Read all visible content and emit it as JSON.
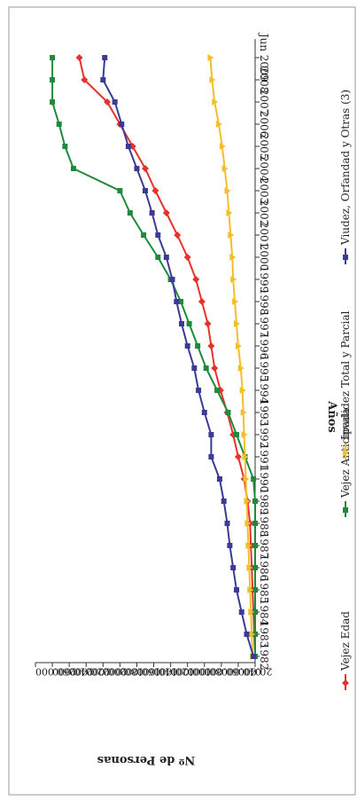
{
  "chart_data": {
    "type": "line",
    "title": "",
    "xlabel": "Años",
    "ylabel": "Nº de Personas",
    "ylim": [
      0,
      260000
    ],
    "yticks": [
      "260.000",
      "240.000",
      "220.000",
      "200.000",
      "180.000",
      "160.000",
      "140.000",
      "120.000",
      "100.000",
      "80.000",
      "60.000",
      "40.000",
      "20.000",
      "0"
    ],
    "categories": [
      "1982",
      "1983",
      "1984",
      "1985",
      "1986",
      "1987",
      "1988",
      "1989",
      "1990",
      "1991",
      "1992",
      "1993",
      "1994",
      "1995",
      "1996",
      "1997",
      "1998",
      "1999",
      "2000",
      "2001",
      "2002",
      "2003",
      "2004",
      "2005",
      "2006",
      "2007",
      "2008",
      "Jun 2009"
    ],
    "orientation": "rotated-90-clockwise",
    "grid": false,
    "legend_position": "bottom",
    "series": [
      {
        "name": "Vejez Edad",
        "color": "#e8312a",
        "marker": "diamond",
        "values": [
          0,
          1000,
          2000,
          3000,
          4000,
          5000,
          6000,
          9000,
          13000,
          20000,
          26000,
          33000,
          41000,
          48000,
          52000,
          56000,
          63000,
          70000,
          80000,
          92000,
          105000,
          118000,
          130000,
          145000,
          160000,
          175000,
          202000,
          208000
        ]
      },
      {
        "name": "Vejez Anticipada",
        "color": "#1f8a3c",
        "marker": "square",
        "values": [
          0,
          0,
          0,
          0,
          0,
          0,
          0,
          0,
          2000,
          12000,
          22000,
          32000,
          45000,
          58000,
          68000,
          78000,
          88000,
          100000,
          115000,
          132000,
          148000,
          160000,
          215000,
          225000,
          232000,
          240000,
          240000,
          240000
        ]
      },
      {
        "name": "Invalidez Total y Parcial",
        "color": "#f2be2a",
        "marker": "triangle",
        "values": [
          3000,
          4000,
          5000,
          6000,
          7000,
          8000,
          9000,
          10000,
          11000,
          12000,
          13000,
          14000,
          15000,
          17000,
          20000,
          22000,
          24000,
          26000,
          27000,
          29000,
          31000,
          33000,
          36000,
          39000,
          43000,
          48000,
          51000,
          53000
        ]
      },
      {
        "name": "Viudez, Orfandad y Otras (3)",
        "color": "#3b3b95",
        "marker": "square",
        "values": [
          2000,
          10000,
          16000,
          22000,
          26000,
          30000,
          33000,
          37000,
          42000,
          52000,
          52000,
          60000,
          67000,
          72000,
          80000,
          87000,
          93000,
          98000,
          105000,
          115000,
          122000,
          130000,
          140000,
          150000,
          158000,
          166000,
          180000,
          178000
        ]
      }
    ]
  }
}
